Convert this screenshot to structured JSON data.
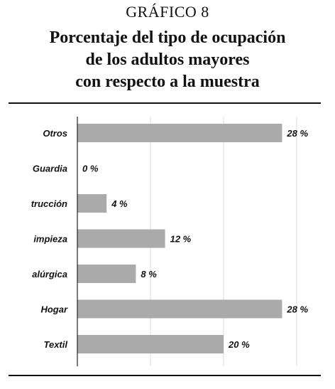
{
  "header": {
    "overline": "GRÁFICO 8",
    "title_lines": [
      "Porcentaje del tipo de ocupación",
      "de los adultos mayores",
      "con respecto a la muestra"
    ]
  },
  "chart_data": {
    "type": "bar",
    "orientation": "horizontal",
    "categories": [
      "Otros",
      "Guardia",
      "trucción",
      "impieza",
      "alúrgica",
      "Hogar",
      "Textil"
    ],
    "values": [
      28,
      0,
      4,
      12,
      8,
      28,
      20
    ],
    "value_labels": [
      "28 %",
      "0 %",
      "4 %",
      "12 %",
      "8 %",
      "28 %",
      "20 %"
    ],
    "xlim": [
      0,
      30
    ],
    "grid": true,
    "bar_color": "#aaaaaa",
    "grid_color": "#dddddd"
  }
}
